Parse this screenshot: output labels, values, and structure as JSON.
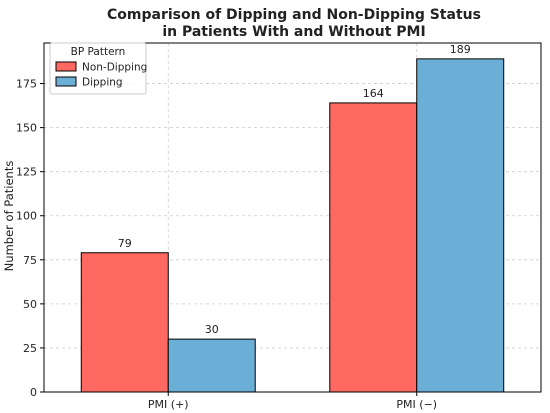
{
  "chart_data": {
    "type": "bar",
    "title_line1": "Comparison of Dipping and Non-Dipping Status",
    "title_line2": "in Patients With and Without PMI",
    "xlabel": "",
    "ylabel": "Number of Patients",
    "categories": [
      "PMI (+)",
      "PMI (−)"
    ],
    "series": [
      {
        "name": "Non-Dipping",
        "values": [
          79,
          164
        ],
        "color": "#ff6961"
      },
      {
        "name": "Dipping",
        "values": [
          30,
          189
        ],
        "color": "#6baed6"
      }
    ],
    "ylim": [
      0,
      198
    ],
    "yticks": [
      0,
      25,
      50,
      75,
      100,
      125,
      150,
      175
    ],
    "grid": true,
    "legend": {
      "title": "BP Pattern",
      "placement": "top-left"
    }
  }
}
